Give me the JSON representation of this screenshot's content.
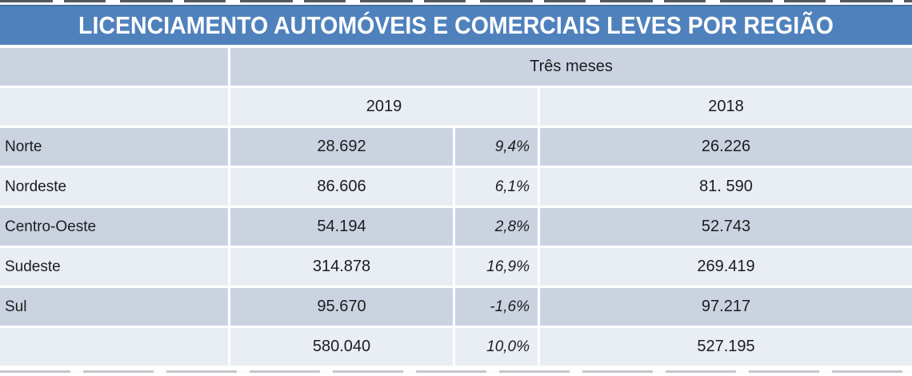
{
  "title": "LICENCIAMENTO AUTOMÓVEIS E COMERCIAIS LEVES POR REGIÃO",
  "colors": {
    "title_bar": "#4f81bd",
    "title_edge": "#41719c",
    "band_dark": "#ccd3e0",
    "band_light": "#e9edf4",
    "title_text": "#ffffff",
    "body_text": "#1c1c1e"
  },
  "table": {
    "period_header": "Três meses",
    "year_left": "2019",
    "year_right": "2018",
    "rows": [
      {
        "region": "Norte",
        "v2019": "28.692",
        "pct": "9,4%",
        "v2018": "26.226"
      },
      {
        "region": "Nordeste",
        "v2019": "86.606",
        "pct": "6,1%",
        "v2018": "81. 590"
      },
      {
        "region": "Centro-Oeste",
        "v2019": "54.194",
        "pct": "2,8%",
        "v2018": "52.743"
      },
      {
        "region": "Sudeste",
        "v2019": "314.878",
        "pct": "16,9%",
        "v2018": "269.419"
      },
      {
        "region": "Sul",
        "v2019": "95.670",
        "pct": "-1,6%",
        "v2018": "97.217"
      },
      {
        "region": "",
        "v2019": "580.040",
        "pct": "10,0%",
        "v2018": "527.195"
      }
    ]
  }
}
